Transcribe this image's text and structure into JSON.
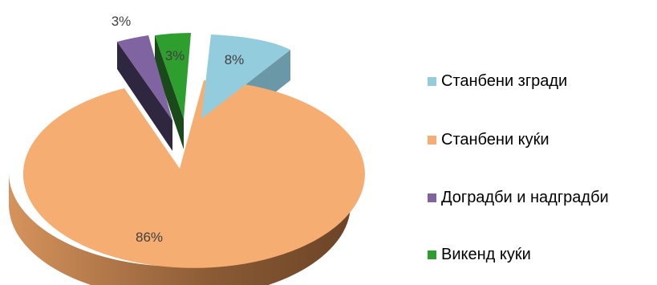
{
  "chart_data": {
    "type": "pie",
    "style": "3d-exploded",
    "title": "",
    "legend_position": "right",
    "slices": [
      {
        "name": "Станбени згради",
        "value": 8,
        "label": "8%",
        "color": "#93cddd",
        "side_color": "#6b98a6"
      },
      {
        "name": "Станбени куќи",
        "value": 86,
        "label": "86%",
        "color": "#f5ad72",
        "side_color": "#b87a4a"
      },
      {
        "name": "Доградби и надградби",
        "value": 3,
        "label": "3%",
        "color": "#8064a2",
        "side_color": "#2f2640"
      },
      {
        "name": "Викенд куќи",
        "value": 3,
        "label": "3%",
        "color": "#2e9e2e",
        "side_color": "#1a4a1a"
      }
    ]
  }
}
